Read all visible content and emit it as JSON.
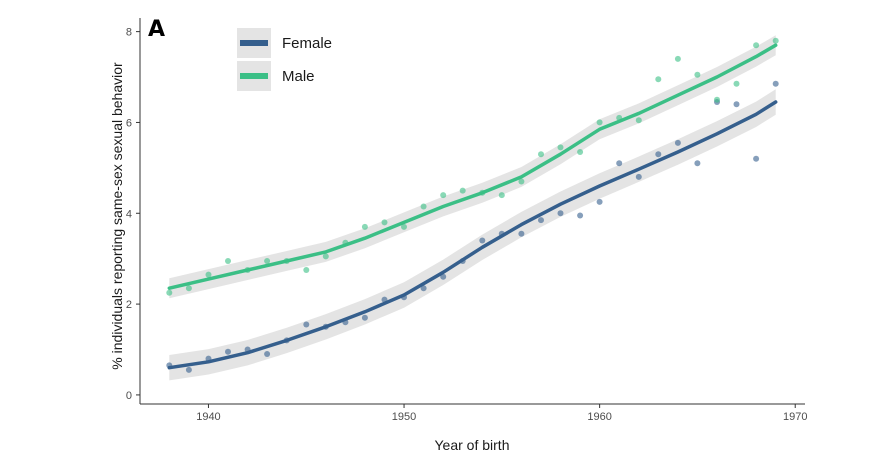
{
  "chart_data": {
    "type": "scatter",
    "panel_label": "A",
    "xlabel": "Year of birth",
    "ylabel": "% individuals reporting same-sex sexual behavior",
    "xlim": [
      1936.5,
      1970.5
    ],
    "ylim": [
      -0.2,
      8.3
    ],
    "xticks": [
      1940,
      1950,
      1960,
      1970
    ],
    "yticks": [
      0,
      2,
      4,
      6,
      8
    ],
    "legend_position": "top-left",
    "grid": false,
    "series": [
      {
        "name": "Female",
        "color": "#355f8d",
        "points": [
          [
            1938,
            0.65
          ],
          [
            1939,
            0.55
          ],
          [
            1940,
            0.8
          ],
          [
            1941,
            0.95
          ],
          [
            1942,
            1.0
          ],
          [
            1943,
            0.9
          ],
          [
            1944,
            1.2
          ],
          [
            1945,
            1.55
          ],
          [
            1946,
            1.5
          ],
          [
            1947,
            1.6
          ],
          [
            1948,
            1.7
          ],
          [
            1949,
            2.1
          ],
          [
            1950,
            2.15
          ],
          [
            1951,
            2.35
          ],
          [
            1952,
            2.6
          ],
          [
            1953,
            2.95
          ],
          [
            1954,
            3.4
          ],
          [
            1955,
            3.55
          ],
          [
            1956,
            3.55
          ],
          [
            1957,
            3.85
          ],
          [
            1958,
            4.0
          ],
          [
            1959,
            3.95
          ],
          [
            1960,
            4.25
          ],
          [
            1961,
            5.1
          ],
          [
            1962,
            4.8
          ],
          [
            1963,
            5.3
          ],
          [
            1964,
            5.55
          ],
          [
            1965,
            5.1
          ],
          [
            1966,
            6.45
          ],
          [
            1967,
            6.4
          ],
          [
            1968,
            5.2
          ],
          [
            1969,
            6.85
          ]
        ],
        "trend": [
          [
            1938,
            0.6
          ],
          [
            1940,
            0.73
          ],
          [
            1942,
            0.93
          ],
          [
            1944,
            1.2
          ],
          [
            1946,
            1.5
          ],
          [
            1948,
            1.83
          ],
          [
            1950,
            2.2
          ],
          [
            1952,
            2.7
          ],
          [
            1954,
            3.25
          ],
          [
            1956,
            3.75
          ],
          [
            1958,
            4.2
          ],
          [
            1960,
            4.6
          ],
          [
            1962,
            4.97
          ],
          [
            1964,
            5.35
          ],
          [
            1966,
            5.75
          ],
          [
            1968,
            6.18
          ],
          [
            1969,
            6.45
          ]
        ],
        "band": 0.28
      },
      {
        "name": "Male",
        "color": "#3bbf86",
        "points": [
          [
            1938,
            2.25
          ],
          [
            1939,
            2.35
          ],
          [
            1940,
            2.65
          ],
          [
            1941,
            2.95
          ],
          [
            1942,
            2.75
          ],
          [
            1943,
            2.95
          ],
          [
            1944,
            2.95
          ],
          [
            1945,
            2.75
          ],
          [
            1946,
            3.05
          ],
          [
            1947,
            3.35
          ],
          [
            1948,
            3.7
          ],
          [
            1949,
            3.8
          ],
          [
            1950,
            3.7
          ],
          [
            1951,
            4.15
          ],
          [
            1952,
            4.4
          ],
          [
            1953,
            4.5
          ],
          [
            1954,
            4.45
          ],
          [
            1955,
            4.4
          ],
          [
            1956,
            4.7
          ],
          [
            1957,
            5.3
          ],
          [
            1958,
            5.45
          ],
          [
            1959,
            5.35
          ],
          [
            1960,
            6.0
          ],
          [
            1961,
            6.1
          ],
          [
            1962,
            6.05
          ],
          [
            1963,
            6.95
          ],
          [
            1964,
            7.4
          ],
          [
            1965,
            7.05
          ],
          [
            1966,
            6.5
          ],
          [
            1967,
            6.85
          ],
          [
            1968,
            7.7
          ],
          [
            1969,
            7.8
          ]
        ],
        "trend": [
          [
            1938,
            2.35
          ],
          [
            1940,
            2.55
          ],
          [
            1942,
            2.75
          ],
          [
            1944,
            2.95
          ],
          [
            1946,
            3.15
          ],
          [
            1948,
            3.45
          ],
          [
            1950,
            3.8
          ],
          [
            1952,
            4.15
          ],
          [
            1954,
            4.45
          ],
          [
            1956,
            4.8
          ],
          [
            1958,
            5.3
          ],
          [
            1960,
            5.85
          ],
          [
            1962,
            6.2
          ],
          [
            1964,
            6.6
          ],
          [
            1966,
            7.0
          ],
          [
            1968,
            7.45
          ],
          [
            1969,
            7.7
          ]
        ],
        "band": 0.22
      }
    ]
  }
}
